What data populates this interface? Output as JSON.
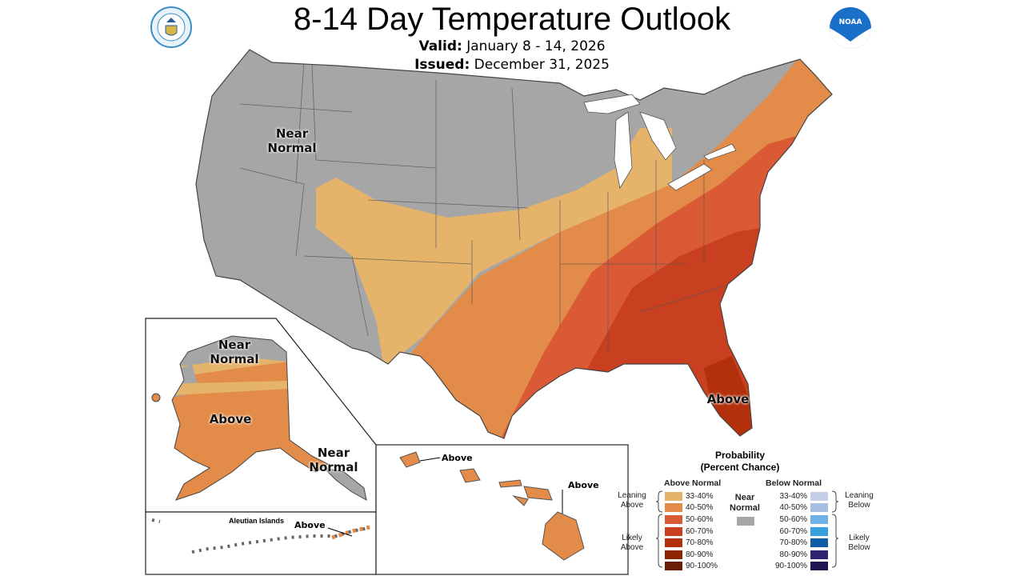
{
  "header": {
    "title": "8-14 Day Temperature Outlook",
    "valid_label": "Valid:",
    "valid_value": "January 8 - 14, 2026",
    "issued_label": "Issued:",
    "issued_value": "December 31, 2025"
  },
  "logos": {
    "left": "department-of-commerce-seal",
    "right": "noaa-logo",
    "right_text": "NOAA"
  },
  "map_labels": {
    "conus_near_normal": "Near Normal",
    "conus_above": "Above",
    "alaska_near_normal_north": "Near Normal",
    "alaska_above": "Above",
    "alaska_near_normal_southeast": "Near Normal",
    "aleutian_title": "Aleutian Islands",
    "aleutian_above": "Above",
    "hawaii_above_1": "Above",
    "hawaii_above_2": "Above"
  },
  "legend": {
    "title_1": "Probability",
    "title_2": "(Percent Chance)",
    "above_header": "Above Normal",
    "below_header": "Below Normal",
    "near_normal": "Near Normal",
    "near_normal_color": "#a6a6a6",
    "leaning_above": "Leaning Above",
    "likely_above": "Likely Above",
    "leaning_below": "Leaning Below",
    "likely_below": "Likely Below",
    "above": [
      {
        "range": "33-40%",
        "color": "#e6b36b"
      },
      {
        "range": "40-50%",
        "color": "#e38b48"
      },
      {
        "range": "50-60%",
        "color": "#d95a34"
      },
      {
        "range": "60-70%",
        "color": "#c8401f"
      },
      {
        "range": "70-80%",
        "color": "#b2300c"
      },
      {
        "range": "80-90%",
        "color": "#8a2500"
      },
      {
        "range": "90-100%",
        "color": "#6a1d05"
      }
    ],
    "below": [
      {
        "range": "33-40%",
        "color": "#c5cfe8"
      },
      {
        "range": "40-50%",
        "color": "#a5bfe0"
      },
      {
        "range": "50-60%",
        "color": "#6fb0e5"
      },
      {
        "range": "60-70%",
        "color": "#3a9fe0"
      },
      {
        "range": "70-80%",
        "color": "#0c5da6"
      },
      {
        "range": "80-90%",
        "color": "#2e2473"
      },
      {
        "range": "90-100%",
        "color": "#1d1650"
      }
    ]
  }
}
